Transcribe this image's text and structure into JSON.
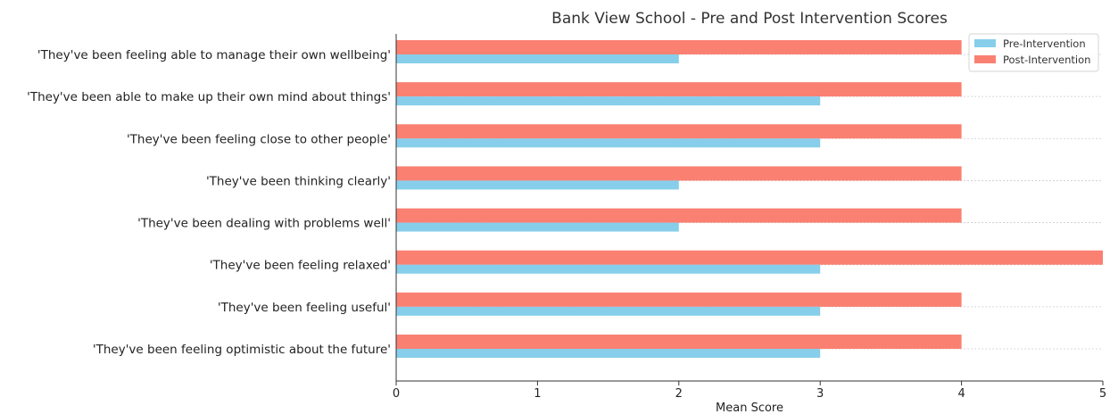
{
  "chart_data": {
    "type": "bar",
    "orientation": "horizontal",
    "title": "Bank View School - Pre and Post Intervention Scores",
    "xlabel": "Mean Score",
    "ylabel": "",
    "xlim": [
      0,
      5
    ],
    "xticks": [
      "0",
      "1",
      "2",
      "3",
      "4",
      "5"
    ],
    "grid": "horizontal-dashed",
    "legend": "top-right",
    "categories": [
      "'They've been feeling able to manage their own wellbeing'",
      "'They've been able to make up their own mind about things'",
      "'They've been feeling close to other people'",
      "'They've been thinking clearly'",
      "'They've been dealing with problems well'",
      "'They've been feeling relaxed'",
      "'They've been feeling useful'",
      "'They've been feeling optimistic about the future'"
    ],
    "series": [
      {
        "name": "Pre-Intervention",
        "color": "#87ceeb",
        "values": [
          2,
          3,
          3,
          2,
          2,
          3,
          3,
          3
        ]
      },
      {
        "name": "Post-Intervention",
        "color": "#fa8072",
        "values": [
          4,
          4,
          4,
          4,
          4,
          5,
          4,
          4
        ]
      }
    ]
  }
}
